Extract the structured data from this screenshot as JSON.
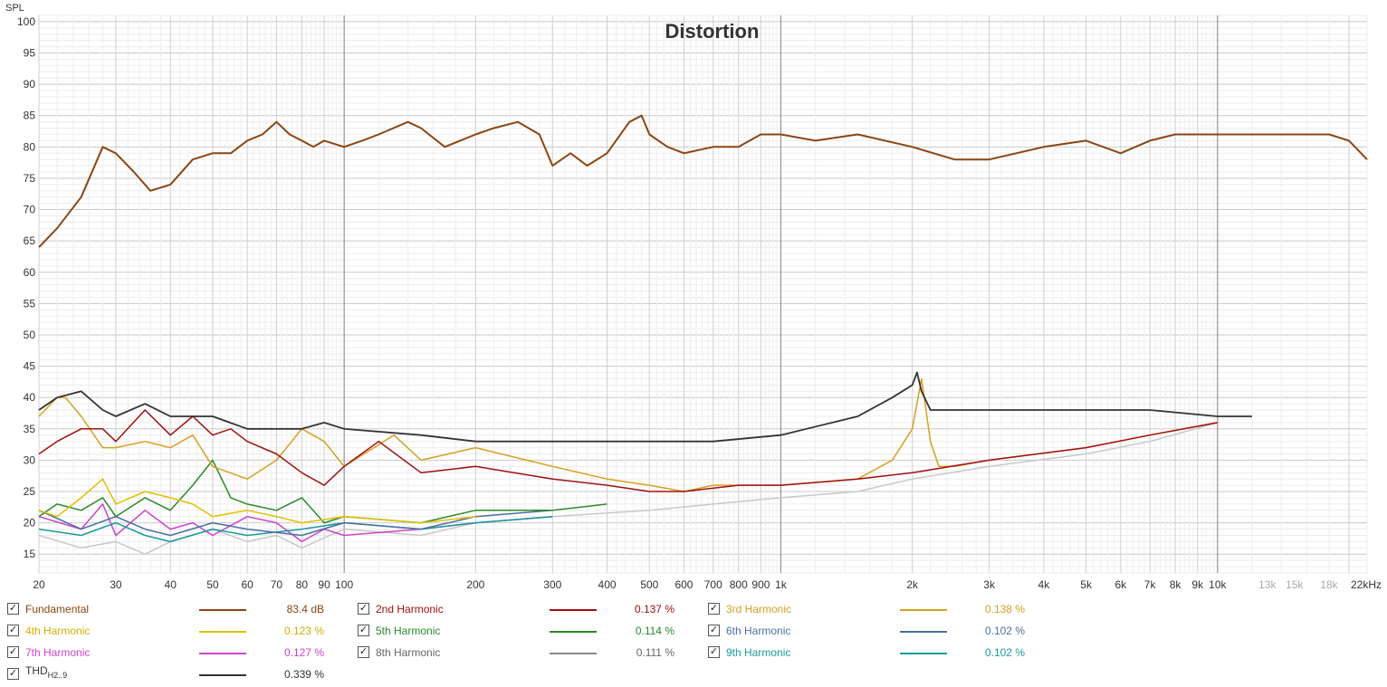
{
  "chart_data": {
    "type": "line",
    "title": "Distortion",
    "ylabel": "SPL",
    "xlabel": "",
    "xscale": "log",
    "xlim": [
      20,
      22000
    ],
    "ylim": [
      12,
      101
    ],
    "grid": true,
    "y_ticks": [
      "100",
      "95",
      "90",
      "85",
      "80",
      "75",
      "70",
      "65",
      "60",
      "55",
      "50",
      "45",
      "40",
      "35",
      "30",
      "25",
      "20",
      "15"
    ],
    "x_ticks": [
      {
        "v": 20,
        "label": "20"
      },
      {
        "v": 30,
        "label": "30"
      },
      {
        "v": 40,
        "label": "40"
      },
      {
        "v": 50,
        "label": "50"
      },
      {
        "v": 60,
        "label": "60"
      },
      {
        "v": 70,
        "label": "70"
      },
      {
        "v": 80,
        "label": "80"
      },
      {
        "v": 90,
        "label": "90"
      },
      {
        "v": 100,
        "label": "100"
      },
      {
        "v": 200,
        "label": "200"
      },
      {
        "v": 300,
        "label": "300"
      },
      {
        "v": 400,
        "label": "400"
      },
      {
        "v": 500,
        "label": "500"
      },
      {
        "v": 600,
        "label": "600"
      },
      {
        "v": 700,
        "label": "700"
      },
      {
        "v": 800,
        "label": "800"
      },
      {
        "v": 900,
        "label": "900"
      },
      {
        "v": 1000,
        "label": "1k"
      },
      {
        "v": 2000,
        "label": "2k"
      },
      {
        "v": 3000,
        "label": "3k"
      },
      {
        "v": 4000,
        "label": "4k"
      },
      {
        "v": 5000,
        "label": "5k"
      },
      {
        "v": 6000,
        "label": "6k"
      },
      {
        "v": 7000,
        "label": "7k"
      },
      {
        "v": 8000,
        "label": "8k"
      },
      {
        "v": 9000,
        "label": "9k"
      },
      {
        "v": 10000,
        "label": "10k"
      },
      {
        "v": 13000,
        "label": "13k",
        "muted": true
      },
      {
        "v": 15000,
        "label": "15k",
        "muted": true
      },
      {
        "v": 18000,
        "label": "18k",
        "muted": true
      },
      {
        "v": 22000,
        "label": "22kHz"
      }
    ],
    "series": [
      {
        "name": "8th Harmonic",
        "color": "#c8c8c8",
        "x": [
          20,
          25,
          30,
          35,
          40,
          50,
          60,
          70,
          80,
          100,
          150,
          200,
          300,
          500,
          700,
          1000,
          1500,
          2000,
          3000,
          5000,
          7000,
          10000
        ],
        "y": [
          18,
          16,
          17,
          15,
          17,
          19,
          17,
          18,
          16,
          19,
          18,
          20,
          21,
          22,
          23,
          24,
          25,
          27,
          29,
          31,
          33,
          36
        ]
      },
      {
        "name": "7th Harmonic",
        "color": "#cc44cc",
        "x": [
          20,
          25,
          28,
          30,
          35,
          40,
          45,
          50,
          60,
          70,
          80,
          90,
          100,
          150,
          200,
          300
        ],
        "y": [
          21,
          19,
          23,
          18,
          22,
          19,
          20,
          18,
          21,
          20,
          17,
          19,
          18,
          19,
          20,
          21
        ]
      },
      {
        "name": "9th Harmonic",
        "color": "#1a9a9a",
        "x": [
          20,
          25,
          30,
          35,
          40,
          50,
          60,
          80,
          100,
          150,
          200,
          300
        ],
        "y": [
          19,
          18,
          20,
          18,
          17,
          19,
          18,
          19,
          20,
          19,
          20,
          21
        ]
      },
      {
        "name": "6th Harmonic",
        "color": "#4a6fa5",
        "x": [
          20,
          25,
          30,
          35,
          40,
          50,
          60,
          80,
          100,
          150,
          200,
          300
        ],
        "y": [
          22,
          19,
          21,
          19,
          18,
          20,
          19,
          18,
          20,
          19,
          21,
          22
        ]
      },
      {
        "name": "5th Harmonic",
        "color": "#2a8a2a",
        "x": [
          20,
          22,
          25,
          28,
          30,
          35,
          40,
          45,
          50,
          55,
          60,
          70,
          80,
          90,
          100,
          150,
          200,
          300,
          400
        ],
        "y": [
          21,
          23,
          22,
          24,
          21,
          24,
          22,
          26,
          30,
          24,
          23,
          22,
          24,
          20,
          21,
          20,
          22,
          22,
          23
        ]
      },
      {
        "name": "4th Harmonic",
        "color": "#e0c000",
        "x": [
          20,
          22,
          25,
          28,
          30,
          35,
          40,
          45,
          50,
          60,
          70,
          80,
          100,
          150,
          200
        ],
        "y": [
          22,
          21,
          24,
          27,
          23,
          25,
          24,
          23,
          21,
          22,
          21,
          20,
          21,
          20,
          21
        ]
      },
      {
        "name": "3rd Harmonic",
        "color": "#d4a020",
        "x": [
          20,
          22,
          23,
          25,
          28,
          30,
          35,
          40,
          45,
          50,
          60,
          70,
          80,
          90,
          100,
          130,
          150,
          200,
          300,
          400,
          500,
          600,
          700,
          800,
          1000,
          1500,
          1800,
          2000,
          2100,
          2200,
          2300,
          2500,
          3000,
          5000,
          7000,
          10000
        ],
        "y": [
          37,
          40,
          40,
          37,
          32,
          32,
          33,
          32,
          34,
          29,
          27,
          30,
          35,
          33,
          29,
          34,
          30,
          32,
          29,
          27,
          26,
          25,
          26,
          26,
          26,
          27,
          30,
          35,
          43,
          33,
          29,
          29,
          30,
          32,
          34,
          36
        ]
      },
      {
        "name": "2nd Harmonic",
        "color": "#a01010",
        "x": [
          20,
          22,
          25,
          28,
          30,
          35,
          40,
          45,
          50,
          55,
          60,
          70,
          80,
          90,
          100,
          120,
          150,
          200,
          300,
          400,
          500,
          600,
          800,
          1000,
          1500,
          2000,
          3000,
          5000,
          7000,
          10000
        ],
        "y": [
          31,
          33,
          35,
          35,
          33,
          38,
          34,
          37,
          34,
          35,
          33,
          31,
          28,
          26,
          29,
          33,
          28,
          29,
          27,
          26,
          25,
          25,
          26,
          26,
          27,
          28,
          30,
          32,
          34,
          36
        ]
      },
      {
        "name": "THD",
        "color": "#333333",
        "x": [
          20,
          22,
          25,
          28,
          30,
          35,
          40,
          45,
          50,
          60,
          70,
          80,
          90,
          100,
          150,
          200,
          300,
          400,
          500,
          700,
          1000,
          1500,
          1800,
          2000,
          2050,
          2100,
          2200,
          2500,
          3000,
          5000,
          7000,
          10000,
          12000
        ],
        "y": [
          38,
          40,
          41,
          38,
          37,
          39,
          37,
          37,
          37,
          35,
          35,
          35,
          36,
          35,
          34,
          33,
          33,
          33,
          33,
          33,
          34,
          37,
          40,
          42,
          44,
          41,
          38,
          38,
          38,
          38,
          38,
          37,
          37
        ]
      },
      {
        "name": "Fundamental",
        "color": "#8b4513",
        "x": [
          20,
          22,
          25,
          28,
          30,
          33,
          36,
          40,
          45,
          50,
          55,
          60,
          65,
          70,
          75,
          80,
          85,
          90,
          100,
          110,
          120,
          140,
          150,
          170,
          200,
          220,
          250,
          280,
          300,
          330,
          360,
          400,
          450,
          480,
          500,
          550,
          600,
          700,
          800,
          900,
          1000,
          1200,
          1500,
          2000,
          2500,
          3000,
          4000,
          5000,
          6000,
          7000,
          8000,
          10000,
          12000,
          15000,
          18000,
          20000,
          22000
        ],
        "y": [
          64,
          67,
          72,
          80,
          79,
          76,
          73,
          74,
          78,
          79,
          79,
          81,
          82,
          84,
          82,
          81,
          80,
          81,
          80,
          81,
          82,
          84,
          83,
          80,
          82,
          83,
          84,
          82,
          77,
          79,
          77,
          79,
          84,
          85,
          82,
          80,
          79,
          80,
          80,
          82,
          82,
          81,
          82,
          80,
          78,
          78,
          80,
          81,
          79,
          81,
          82,
          82,
          82,
          82,
          82,
          81,
          78
        ]
      }
    ]
  },
  "legend": [
    {
      "label": "Fundamental",
      "value": "83.4 dB",
      "color": "#8b4513",
      "label_color": "#8b4513",
      "checked": "✓"
    },
    {
      "label": "2nd Harmonic",
      "value": "0.137 %",
      "color": "#a01010",
      "label_color": "#a01010",
      "checked": "✓"
    },
    {
      "label": "3rd Harmonic",
      "value": "0.138 %",
      "color": "#d4a020",
      "label_color": "#d4a020",
      "checked": "✓"
    },
    {
      "label": "4th Harmonic",
      "value": "0.123 %",
      "color": "#e0c000",
      "label_color": "#d4b000",
      "checked": "✓"
    },
    {
      "label": "5th Harmonic",
      "value": "0.114 %",
      "color": "#2a8a2a",
      "label_color": "#2a8a2a",
      "checked": "✓"
    },
    {
      "label": "6th Harmonic",
      "value": "0.102 %",
      "color": "#4a6fa5",
      "label_color": "#4a6fa5",
      "checked": "✓"
    },
    {
      "label": "7th Harmonic",
      "value": "0.127 %",
      "color": "#cc44cc",
      "label_color": "#cc44cc",
      "checked": "✓"
    },
    {
      "label": "8th Harmonic",
      "value": "0.111 %",
      "color": "#888888",
      "label_color": "#666666",
      "checked": "✓"
    },
    {
      "label": "9th Harmonic",
      "value": "0.102 %",
      "color": "#1a9a9a",
      "label_color": "#1a9a9a",
      "checked": "✓"
    },
    {
      "label": "THD",
      "label_sub": "H2..9",
      "value": "0.339 %",
      "color": "#333333",
      "label_color": "#333333",
      "checked": "✓"
    }
  ]
}
